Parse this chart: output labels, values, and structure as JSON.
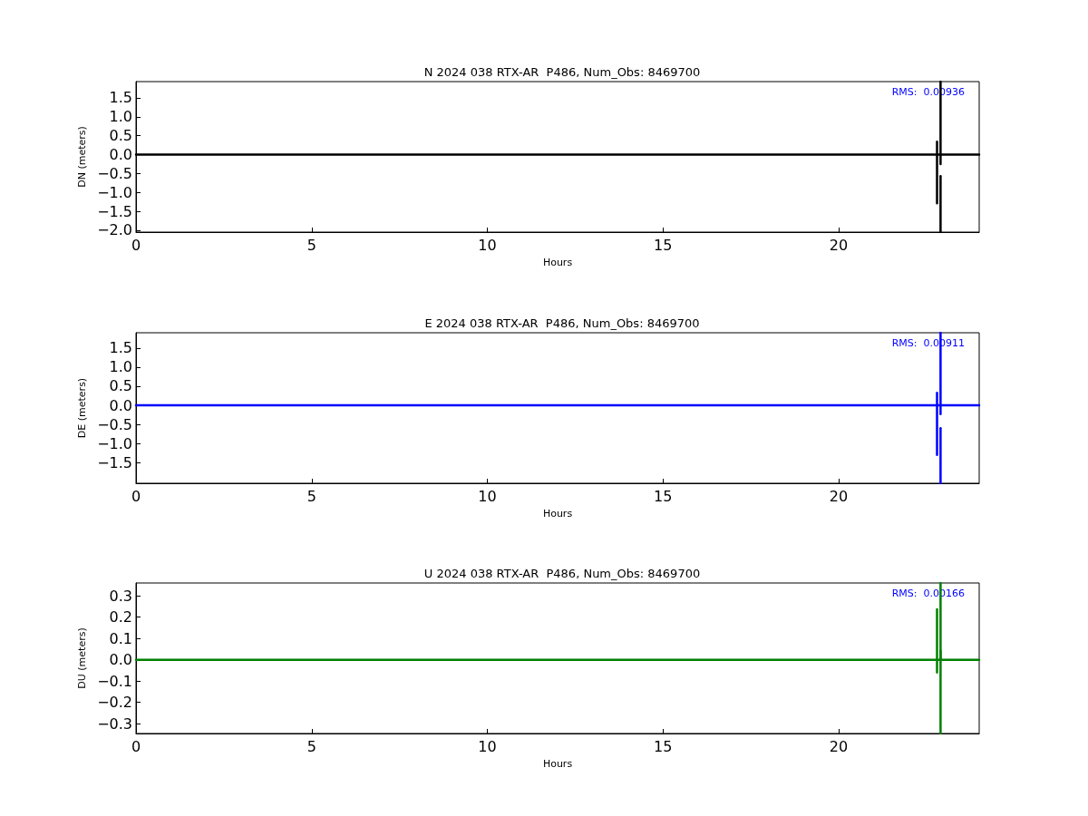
{
  "chart_data": [
    {
      "type": "line",
      "title": "N 2024 038 RTX-AR  P486, Num_Obs: 8469700",
      "xlabel": "Hours",
      "ylabel": "DN (meters)",
      "marker": "none",
      "line_style": "solid",
      "series": [
        {
          "color": "#000000",
          "x": [
            0,
            22.8,
            22.8,
            22.8,
            22.8,
            22.9,
            22.9,
            22.9,
            22.9,
            24
          ],
          "values": [
            0,
            0,
            0.34,
            -1.29,
            0,
            0,
            1.93,
            -0.25,
            0,
            0
          ]
        },
        {
          "color": "#000000",
          "x": [
            22.9,
            22.9
          ],
          "values": [
            -0.57,
            -2.05
          ]
        }
      ],
      "xlim": [
        0,
        24
      ],
      "xticks": [
        0,
        5,
        10,
        15,
        20
      ],
      "ylim": [
        -2.05,
        1.93
      ],
      "yticks": [
        {
          "value": -2,
          "label": "−2.0"
        },
        {
          "value": -1.5,
          "label": "−1.5"
        },
        {
          "value": -1,
          "label": "−1.0"
        },
        {
          "value": -0.5,
          "label": "−0.5"
        },
        {
          "value": 0,
          "label": "0.0"
        },
        {
          "value": 0.5,
          "label": "0.5"
        },
        {
          "value": 1,
          "label": "1.0"
        },
        {
          "value": 1.5,
          "label": "1.5"
        }
      ],
      "annotations": [
        "RMS:  0.00936"
      ]
    },
    {
      "type": "line",
      "title": "E 2024 038 RTX-AR  P486, Num_Obs: 8469700",
      "xlabel": "Hours",
      "ylabel": "DE (meters)",
      "marker": "none",
      "line_style": "solid",
      "series": [
        {
          "color": "#0000ff",
          "x": [
            0,
            22.8,
            22.8,
            22.8,
            22.8,
            22.9,
            22.9,
            22.9,
            22.9,
            24
          ],
          "values": [
            0,
            0,
            0.33,
            -1.3,
            0,
            0,
            1.9,
            -0.23,
            0,
            0
          ]
        },
        {
          "color": "#0000ff",
          "x": [
            22.9,
            22.9
          ],
          "values": [
            -0.6,
            -2.04
          ]
        }
      ],
      "xlim": [
        0,
        24
      ],
      "xticks": [
        0,
        5,
        10,
        15,
        20
      ],
      "ylim": [
        -2.04,
        1.9
      ],
      "yticks": [
        {
          "value": -1.5,
          "label": "−1.5"
        },
        {
          "value": -1,
          "label": "−1.0"
        },
        {
          "value": -0.5,
          "label": "−0.5"
        },
        {
          "value": 0,
          "label": "0.0"
        },
        {
          "value": 0.5,
          "label": "0.5"
        },
        {
          "value": 1,
          "label": "1.0"
        },
        {
          "value": 1.5,
          "label": "1.5"
        }
      ],
      "annotations": [
        "RMS:  0.00911"
      ]
    },
    {
      "type": "line",
      "title": "U 2024 038 RTX-AR  P486, Num_Obs: 8469700",
      "xlabel": "Hours",
      "ylabel": "DU (meters)",
      "marker": "none",
      "line_style": "solid",
      "series": [
        {
          "color": "#008000",
          "x": [
            0,
            22.8,
            22.8,
            22.8,
            22.8,
            22.9,
            22.9,
            22.9
          ],
          "values": [
            0,
            0,
            0.237,
            -0.06,
            0,
            0,
            0.36,
            0.105
          ]
        },
        {
          "color": "#008000",
          "x": [
            22.9,
            22.9,
            22.9,
            24
          ],
          "values": [
            0.042,
            -0.346,
            0,
            0
          ]
        }
      ],
      "xlim": [
        0,
        24
      ],
      "xticks": [
        0,
        5,
        10,
        15,
        20
      ],
      "ylim": [
        -0.346,
        0.36
      ],
      "yticks": [
        {
          "value": -0.3,
          "label": "−0.3"
        },
        {
          "value": -0.2,
          "label": "−0.2"
        },
        {
          "value": -0.1,
          "label": "−0.1"
        },
        {
          "value": 0,
          "label": "0.0"
        },
        {
          "value": 0.1,
          "label": "0.1"
        },
        {
          "value": 0.2,
          "label": "0.2"
        },
        {
          "value": 0.3,
          "label": "0.3"
        }
      ],
      "annotations": [
        "RMS:  0.00166"
      ]
    }
  ]
}
